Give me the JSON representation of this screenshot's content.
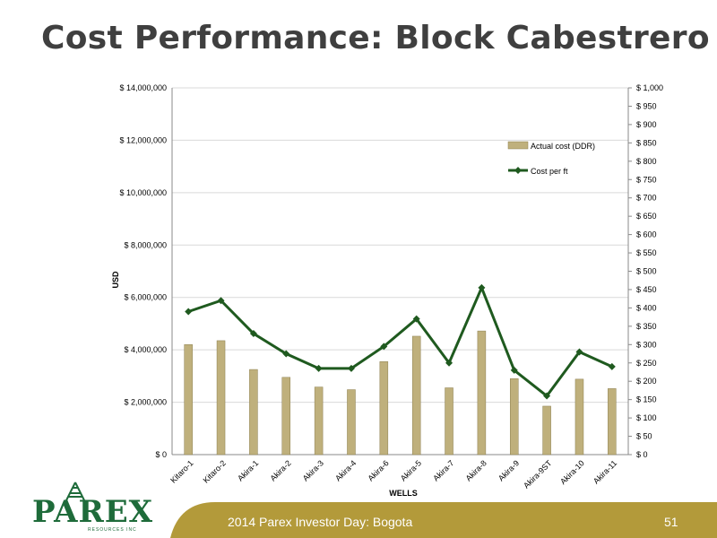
{
  "slide": {
    "title": "Cost Performance: Block Cabestrero",
    "footer": "2014 Parex Investor Day: Bogota",
    "page_number": "51",
    "logo_text": "PAREX",
    "logo_subtext": "RESOURCES INC",
    "colors": {
      "title": "#3f3f3f",
      "bar": "#bfb07c",
      "line": "#1f5a1f",
      "footer": "#b39a3a",
      "logo": "#1e6b3a"
    }
  },
  "chart_data": {
    "type": "bar",
    "categories": [
      "Kitaro-1",
      "Kitaro-2",
      "Akira-1",
      "Akira-2",
      "Akira-3",
      "Akira-4",
      "Akira-6",
      "Akira-5",
      "Akira-7",
      "Akira-8",
      "Akira-9",
      "Akira-9ST",
      "Akira-10",
      "Akira-11"
    ],
    "series": [
      {
        "name": "Actual cost (DDR)",
        "type": "bar",
        "axis": "left",
        "values": [
          4200000,
          4350000,
          3250000,
          2950000,
          2580000,
          2480000,
          3550000,
          4520000,
          2550000,
          4720000,
          2900000,
          1850000,
          2880000,
          2520000
        ]
      },
      {
        "name": "Cost per ft",
        "type": "line",
        "axis": "right",
        "values": [
          390,
          420,
          330,
          275,
          235,
          235,
          295,
          370,
          250,
          455,
          230,
          160,
          280,
          240
        ]
      }
    ],
    "xlabel": "WELLS",
    "ylabel": "USD",
    "ylim": [
      0,
      14000000
    ],
    "y2lim": [
      0,
      1000
    ],
    "yticks": [
      "$ 0",
      "$ 2,000,000",
      "$ 4,000,000",
      "$ 6,000,000",
      "$ 8,000,000",
      "$ 10,000,000",
      "$ 12,000,000",
      "$ 14,000,000"
    ],
    "y2ticks": [
      "$ 0",
      "$ 50",
      "$ 100",
      "$ 150",
      "$ 200",
      "$ 250",
      "$ 300",
      "$ 350",
      "$ 400",
      "$ 450",
      "$ 500",
      "$ 550",
      "$ 600",
      "$ 650",
      "$ 700",
      "$ 750",
      "$ 800",
      "$ 850",
      "$ 900",
      "$ 950",
      "$ 1,000"
    ],
    "grid": true,
    "legend": "top-right"
  }
}
